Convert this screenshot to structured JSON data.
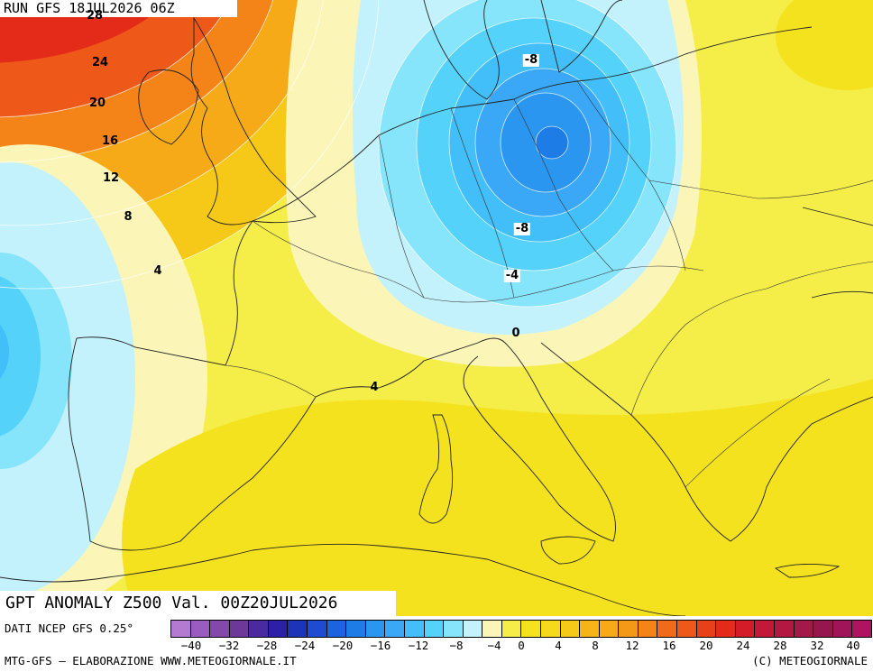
{
  "header": {
    "run_label": "RUN GFS 18JUL2026 06Z"
  },
  "map": {
    "title": "GPT ANOMALY Z500 Val. 00Z20JUL2026",
    "field": "Z500 geopotential anomaly",
    "contour_labels": [
      {
        "id": "c28",
        "text": "28",
        "boxed": false
      },
      {
        "id": "c24",
        "text": "24",
        "boxed": false
      },
      {
        "id": "c20",
        "text": "20",
        "boxed": false
      },
      {
        "id": "c16",
        "text": "16",
        "boxed": false
      },
      {
        "id": "c12",
        "text": "12",
        "boxed": false
      },
      {
        "id": "c8",
        "text": "8",
        "boxed": false
      },
      {
        "id": "c4a",
        "text": "4",
        "boxed": false
      },
      {
        "id": "c4b",
        "text": "4",
        "boxed": false
      },
      {
        "id": "cm8a",
        "text": "-8",
        "boxed": true
      },
      {
        "id": "cm8b",
        "text": "-8",
        "boxed": true
      },
      {
        "id": "cm4",
        "text": "-4",
        "boxed": true
      },
      {
        "id": "c0",
        "text": "0",
        "boxed": false
      }
    ],
    "colors": {
      "neg_24": "#1e7ce6",
      "neg_20": "#2a96f0",
      "neg_16": "#3aa8f6",
      "neg_12": "#42bef8",
      "neg_8": "#55d2fa",
      "neg_4": "#86e4fb",
      "neg_0": "#c4f2fc",
      "pos_0": "#fbf6b8",
      "pos_4": "#f6ee48",
      "pos_8": "#f4e21e",
      "pos_12": "#f6c818",
      "pos_16": "#f6aa18",
      "pos_20": "#f48418",
      "pos_24": "#ee5818",
      "pos_28": "#e42a18"
    }
  },
  "footer": {
    "source_label": "DATI NCEP GFS 0.25°",
    "credit_left": "MTG-GFS — ELABORAZIONE WWW.METEOGIORNALE.IT",
    "credit_right": "(C) METEOGIORNALE",
    "colorbar": {
      "colors": [
        "#b47ad2",
        "#9a5cbe",
        "#8448aa",
        "#6e3898",
        "#4a2aa0",
        "#2c20a8",
        "#1e34b8",
        "#1e4cd0",
        "#1a64e0",
        "#1e7ce6",
        "#2a96f0",
        "#3aa8f6",
        "#42bef8",
        "#55d2fa",
        "#86e4fb",
        "#c4f2fc",
        "#fbf6b8",
        "#f6ee48",
        "#f4e21e",
        "#f6d81c",
        "#f6c818",
        "#f6b418",
        "#f6aa18",
        "#f49818",
        "#f48418",
        "#f06a18",
        "#ee5818",
        "#e84018",
        "#e42a18",
        "#d41c28",
        "#c41838",
        "#b41842",
        "#a4184a",
        "#94184e",
        "#a0145a",
        "#b01460"
      ],
      "tick_labels": [
        "−40",
        "−32",
        "−28",
        "−24",
        "−20",
        "−16",
        "−12",
        "−8",
        "−4",
        "0",
        "4",
        "8",
        "12",
        "16",
        "20",
        "24",
        "28",
        "32",
        "40"
      ]
    }
  }
}
